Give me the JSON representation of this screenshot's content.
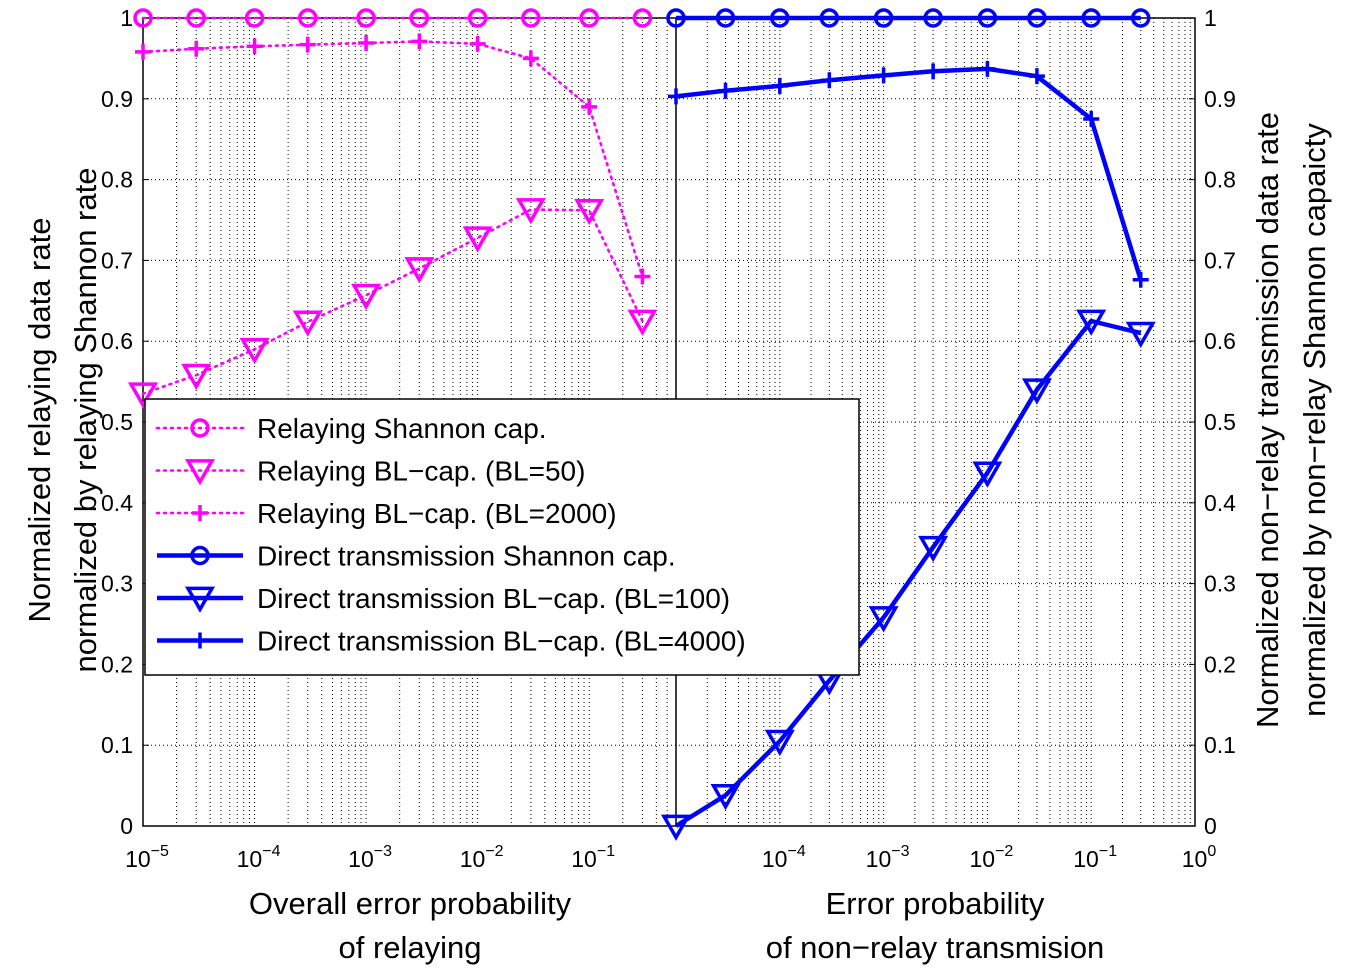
{
  "chart_data": [
    {
      "type": "line",
      "xscale": "log",
      "xlim": [
        1e-05,
        0.6
      ],
      "ylim": [
        0,
        1
      ],
      "xlabel": [
        "Overall error probability",
        "of relaying"
      ],
      "ylabel": [
        "Normalized relaying data rate",
        "normalized by relaying Shannon rate"
      ],
      "grid": true,
      "x_ticks": [
        {
          "value": 1e-05,
          "base": "10",
          "exp": "−5"
        },
        {
          "value": 0.0001,
          "base": "10",
          "exp": "−4"
        },
        {
          "value": 0.001,
          "base": "10",
          "exp": "−3"
        },
        {
          "value": 0.01,
          "base": "10",
          "exp": "−2"
        },
        {
          "value": 0.1,
          "base": "10",
          "exp": "−1"
        }
      ],
      "y_ticks": [
        "0",
        "0.1",
        "0.2",
        "0.3",
        "0.4",
        "0.5",
        "0.6",
        "0.7",
        "0.8",
        "0.9",
        "1"
      ],
      "series": [
        {
          "name": "Relaying Shannon cap.",
          "color": "#ff00ff",
          "line": "dotted",
          "marker": "circle",
          "x": [
            1e-05,
            3e-05,
            0.0001,
            0.0003,
            0.001,
            0.003,
            0.01,
            0.03,
            0.1,
            0.3
          ],
          "y": [
            1,
            1,
            1,
            1,
            1,
            1,
            1,
            1,
            1,
            1
          ]
        },
        {
          "name": "Relaying BL−cap. (BL=50)",
          "color": "#ff00ff",
          "line": "dotted",
          "marker": "triangle-down",
          "x": [
            1e-05,
            3e-05,
            0.0001,
            0.0003,
            0.001,
            0.003,
            0.01,
            0.03,
            0.1,
            0.3
          ],
          "y": [
            0.535,
            0.558,
            0.59,
            0.624,
            0.657,
            0.69,
            0.728,
            0.763,
            0.762,
            0.625
          ]
        },
        {
          "name": "Relaying BL−cap. (BL=2000)",
          "color": "#ff00ff",
          "line": "dotted",
          "marker": "plus",
          "x": [
            1e-05,
            3e-05,
            0.0001,
            0.0003,
            0.001,
            0.003,
            0.01,
            0.03,
            0.1,
            0.3
          ],
          "y": [
            0.958,
            0.962,
            0.965,
            0.967,
            0.969,
            0.971,
            0.968,
            0.95,
            0.89,
            0.68
          ]
        }
      ]
    },
    {
      "type": "line",
      "xscale": "log",
      "xlim": [
        1e-05,
        1
      ],
      "ylim": [
        0,
        1
      ],
      "xlabel": [
        "Error probability",
        "of non−relay transmision"
      ],
      "ylabel": [
        "Normalized non−relay transmission data rate",
        "normalized by non−relay Shannon capaicty"
      ],
      "grid": true,
      "x_ticks": [
        {
          "value": 0.0001,
          "base": "10",
          "exp": "−4"
        },
        {
          "value": 0.001,
          "base": "10",
          "exp": "−3"
        },
        {
          "value": 0.01,
          "base": "10",
          "exp": "−2"
        },
        {
          "value": 0.1,
          "base": "10",
          "exp": "−1"
        },
        {
          "value": 1,
          "base": "10",
          "exp": "0"
        }
      ],
      "y_ticks": [
        "0",
        "0.1",
        "0.2",
        "0.3",
        "0.4",
        "0.5",
        "0.6",
        "0.7",
        "0.8",
        "0.9",
        "1"
      ],
      "series": [
        {
          "name": "Direct transmission Shannon cap.",
          "color": "#0000ff",
          "line": "solid",
          "marker": "circle",
          "x": [
            1e-05,
            3e-05,
            0.0001,
            0.0003,
            0.001,
            0.003,
            0.01,
            0.03,
            0.1,
            0.3
          ],
          "y": [
            1,
            1,
            1,
            1,
            1,
            1,
            1,
            1,
            1,
            1
          ]
        },
        {
          "name": "Direct transmission BL−cap. (BL=100)",
          "color": "#0000ff",
          "line": "solid",
          "marker": "triangle-down",
          "x": [
            1e-05,
            3e-05,
            0.0001,
            0.0003,
            0.001,
            0.003,
            0.01,
            0.03,
            0.1,
            0.3
          ],
          "y": [
            0.0,
            0.038,
            0.105,
            0.18,
            0.258,
            0.345,
            0.437,
            0.54,
            0.625,
            0.61
          ]
        },
        {
          "name": "Direct transmission BL−cap. (BL=4000)",
          "color": "#0000ff",
          "line": "solid",
          "marker": "plus",
          "x": [
            1e-05,
            3e-05,
            0.0001,
            0.0003,
            0.001,
            0.003,
            0.01,
            0.03,
            0.1,
            0.3
          ],
          "y": [
            0.903,
            0.91,
            0.916,
            0.923,
            0.929,
            0.934,
            0.937,
            0.928,
            0.875,
            0.676
          ]
        }
      ]
    }
  ]
}
